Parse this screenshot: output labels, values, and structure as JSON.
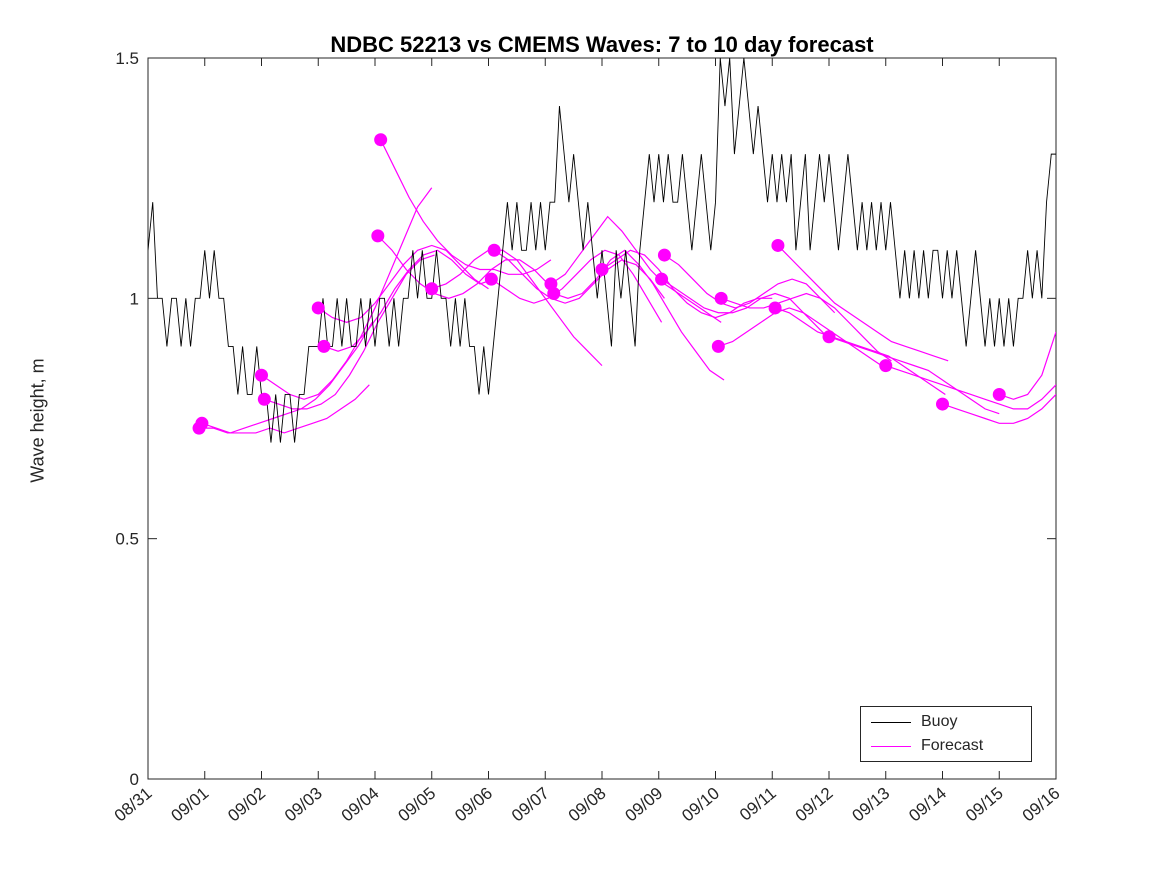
{
  "figure": {
    "title": "NDBC 52213 vs CMEMS Waves: 7 to 10 day forecast",
    "ylabel": "Wave height, m",
    "legend": {
      "buoy": "Buoy",
      "forecast": "Forecast"
    }
  },
  "colors": {
    "buoy": "#000000",
    "forecast": "#ff00ff",
    "axis": "#262626",
    "background": "#ffffff"
  },
  "chart_data": {
    "type": "line",
    "title": "NDBC 52213 vs CMEMS Waves: 7 to 10 day forecast",
    "xlabel": "",
    "ylabel": "Wave height, m",
    "ylim": [
      0,
      1.5
    ],
    "yticks": [
      0,
      0.5,
      1,
      1.5
    ],
    "ytick_labels": [
      "0",
      "0.5",
      "1",
      "1.5"
    ],
    "xtick_labels": [
      "08/31",
      "09/01",
      "09/02",
      "09/03",
      "09/04",
      "09/05",
      "09/06",
      "09/07",
      "09/08",
      "09/09",
      "09/10",
      "09/11",
      "09/12",
      "09/13",
      "09/14",
      "09/15",
      "09/16"
    ],
    "xlim_days": [
      0,
      16
    ],
    "grid": false,
    "legend_entries": [
      "Buoy",
      "Forecast"
    ],
    "legend_position": "southeast",
    "series": [
      {
        "name": "Buoy",
        "color": "#000000",
        "start_day": 0,
        "dt_days": 0.0833333,
        "values": [
          1.1,
          1.2,
          1.0,
          1.0,
          0.9,
          1.0,
          1.0,
          0.9,
          1.0,
          0.9,
          1.0,
          1.0,
          1.1,
          1.0,
          1.1,
          1.0,
          1.0,
          0.9,
          0.9,
          0.8,
          0.9,
          0.8,
          0.8,
          0.9,
          0.8,
          0.8,
          0.7,
          0.8,
          0.7,
          0.8,
          0.8,
          0.7,
          0.8,
          0.8,
          0.9,
          0.9,
          0.9,
          1.0,
          0.9,
          0.9,
          1.0,
          0.9,
          1.0,
          0.9,
          0.9,
          1.0,
          0.9,
          1.0,
          0.9,
          1.0,
          1.0,
          0.9,
          1.0,
          0.9,
          1.0,
          1.0,
          1.1,
          1.0,
          1.1,
          1.0,
          1.0,
          1.1,
          1.0,
          1.0,
          0.9,
          1.0,
          0.9,
          1.0,
          0.9,
          0.9,
          0.8,
          0.9,
          0.8,
          0.9,
          1.0,
          1.1,
          1.2,
          1.1,
          1.2,
          1.1,
          1.1,
          1.2,
          1.1,
          1.2,
          1.1,
          1.2,
          1.2,
          1.4,
          1.3,
          1.2,
          1.3,
          1.2,
          1.1,
          1.2,
          1.1,
          1.0,
          1.1,
          1.0,
          0.9,
          1.1,
          1.0,
          1.1,
          1.0,
          0.9,
          1.1,
          1.2,
          1.3,
          1.2,
          1.3,
          1.2,
          1.3,
          1.2,
          1.2,
          1.3,
          1.2,
          1.1,
          1.2,
          1.3,
          1.2,
          1.1,
          1.2,
          1.5,
          1.4,
          1.5,
          1.3,
          1.4,
          1.5,
          1.4,
          1.3,
          1.4,
          1.3,
          1.2,
          1.3,
          1.2,
          1.3,
          1.2,
          1.3,
          1.1,
          1.2,
          1.3,
          1.1,
          1.2,
          1.3,
          1.2,
          1.3,
          1.2,
          1.1,
          1.2,
          1.3,
          1.2,
          1.1,
          1.2,
          1.1,
          1.2,
          1.1,
          1.2,
          1.1,
          1.2,
          1.1,
          1.0,
          1.1,
          1.0,
          1.1,
          1.0,
          1.1,
          1.0,
          1.1,
          1.1,
          1.0,
          1.1,
          1.0,
          1.1,
          1.0,
          0.9,
          1.0,
          1.1,
          1.0,
          0.9,
          1.0,
          0.9,
          1.0,
          0.9,
          1.0,
          0.9,
          1.0,
          1.0,
          1.1,
          1.0,
          1.1,
          1.0,
          1.2,
          1.3,
          1.3
        ]
      }
    ],
    "forecasts": [
      {
        "start_day": 0.9,
        "dt_days": 0.25,
        "values": [
          0.73,
          0.73,
          0.72,
          0.72,
          0.72,
          0.73,
          0.72,
          0.73,
          0.74,
          0.75,
          0.77,
          0.79,
          0.82
        ]
      },
      {
        "start_day": 0.95,
        "dt_days": 0.25,
        "values": [
          0.74,
          0.73,
          0.72,
          0.73,
          0.74,
          0.75,
          0.76,
          0.77,
          0.79,
          0.82,
          0.86,
          0.9,
          0.95
        ]
      },
      {
        "start_day": 2.0,
        "dt_days": 0.25,
        "values": [
          0.84,
          0.82,
          0.8,
          0.79,
          0.8,
          0.83,
          0.87,
          0.92,
          0.98,
          1.05,
          1.12,
          1.19,
          1.23
        ]
      },
      {
        "start_day": 2.05,
        "dt_days": 0.25,
        "values": [
          0.79,
          0.78,
          0.77,
          0.77,
          0.78,
          0.8,
          0.84,
          0.89,
          0.95,
          1.0,
          1.05,
          1.08,
          1.09
        ]
      },
      {
        "start_day": 3.0,
        "dt_days": 0.25,
        "values": [
          0.98,
          0.96,
          0.95,
          0.96,
          0.99,
          1.03,
          1.07,
          1.1,
          1.11,
          1.1,
          1.07,
          1.04,
          1.02
        ]
      },
      {
        "start_day": 3.1,
        "dt_days": 0.25,
        "values": [
          0.9,
          0.89,
          0.9,
          0.93,
          0.97,
          1.02,
          1.06,
          1.09,
          1.1,
          1.08,
          1.05,
          1.03,
          1.04
        ]
      },
      {
        "start_day": 4.1,
        "dt_days": 0.25,
        "values": [
          1.33,
          1.27,
          1.21,
          1.16,
          1.12,
          1.09,
          1.07,
          1.06,
          1.06,
          1.05,
          1.05,
          1.06,
          1.08
        ]
      },
      {
        "start_day": 4.05,
        "dt_days": 0.25,
        "values": [
          1.13,
          1.1,
          1.06,
          1.03,
          1.01,
          1.0,
          1.01,
          1.03,
          1.06,
          1.08,
          1.08,
          1.06,
          1.03
        ]
      },
      {
        "start_day": 5.0,
        "dt_days": 0.25,
        "values": [
          1.02,
          1.03,
          1.05,
          1.08,
          1.1,
          1.1,
          1.08,
          1.04,
          1.0,
          0.96,
          0.92,
          0.89,
          0.86
        ]
      },
      {
        "start_day": 6.1,
        "dt_days": 0.25,
        "values": [
          1.1,
          1.08,
          1.05,
          1.02,
          1.0,
          0.99,
          1.0,
          1.03,
          1.06,
          1.08,
          1.07,
          1.04,
          1.0
        ]
      },
      {
        "start_day": 6.05,
        "dt_days": 0.25,
        "values": [
          1.04,
          1.02,
          1.0,
          0.99,
          1.0,
          1.02,
          1.05,
          1.08,
          1.1,
          1.09,
          1.05,
          1.0,
          0.95
        ]
      },
      {
        "start_day": 7.1,
        "dt_days": 0.25,
        "values": [
          1.03,
          1.05,
          1.09,
          1.13,
          1.17,
          1.14,
          1.1,
          1.06,
          1.03,
          1.01,
          0.99,
          0.97,
          0.95
        ]
      },
      {
        "start_day": 7.15,
        "dt_days": 0.25,
        "values": [
          1.01,
          1.0,
          1.01,
          1.04,
          1.08,
          1.1,
          1.07,
          1.03,
          0.98,
          0.93,
          0.89,
          0.85,
          0.83
        ]
      },
      {
        "start_day": 8.0,
        "dt_days": 0.25,
        "values": [
          1.06,
          1.08,
          1.1,
          1.09,
          1.06,
          1.02,
          0.99,
          0.97,
          0.96,
          0.97,
          0.99,
          1.0,
          1.0
        ]
      },
      {
        "start_day": 9.1,
        "dt_days": 0.25,
        "values": [
          1.09,
          1.07,
          1.04,
          1.01,
          0.99,
          0.98,
          0.99,
          1.01,
          1.03,
          1.04,
          1.03,
          1.0,
          0.97
        ]
      },
      {
        "start_day": 9.05,
        "dt_days": 0.25,
        "values": [
          1.04,
          1.02,
          1.0,
          0.98,
          0.97,
          0.97,
          0.98,
          1.0,
          1.01,
          1.0,
          0.97,
          0.94,
          0.91
        ]
      },
      {
        "start_day": 10.1,
        "dt_days": 0.25,
        "values": [
          1.0,
          0.99,
          0.98,
          0.98,
          0.99,
          1.0,
          1.01,
          1.0,
          0.98,
          0.95,
          0.92,
          0.89,
          0.87
        ]
      },
      {
        "start_day": 10.05,
        "dt_days": 0.25,
        "values": [
          0.9,
          0.91,
          0.93,
          0.95,
          0.97,
          0.98,
          0.97,
          0.95,
          0.93,
          0.91,
          0.89,
          0.87,
          0.85
        ]
      },
      {
        "start_day": 11.1,
        "dt_days": 0.25,
        "values": [
          1.11,
          1.08,
          1.05,
          1.02,
          0.99,
          0.97,
          0.95,
          0.93,
          0.91,
          0.9,
          0.89,
          0.88,
          0.87
        ]
      },
      {
        "start_day": 11.05,
        "dt_days": 0.25,
        "values": [
          0.98,
          0.97,
          0.95,
          0.93,
          0.92,
          0.91,
          0.9,
          0.89,
          0.88,
          0.86,
          0.84,
          0.82,
          0.8
        ]
      },
      {
        "start_day": 12.0,
        "dt_days": 0.25,
        "values": [
          0.92,
          0.91,
          0.9,
          0.89,
          0.88,
          0.87,
          0.86,
          0.85,
          0.83,
          0.81,
          0.79,
          0.77,
          0.76
        ]
      },
      {
        "start_day": 13.0,
        "dt_days": 0.25,
        "values": [
          0.86,
          0.85,
          0.84,
          0.83,
          0.82,
          0.81,
          0.8,
          0.79,
          0.78,
          0.77,
          0.77,
          0.79,
          0.82
        ]
      },
      {
        "start_day": 14.0,
        "dt_days": 0.25,
        "values": [
          0.78,
          0.77,
          0.76,
          0.75,
          0.74,
          0.74,
          0.75,
          0.77,
          0.8
        ]
      },
      {
        "start_day": 15.0,
        "dt_days": 0.25,
        "values": [
          0.8,
          0.79,
          0.8,
          0.84,
          0.93
        ]
      }
    ]
  }
}
